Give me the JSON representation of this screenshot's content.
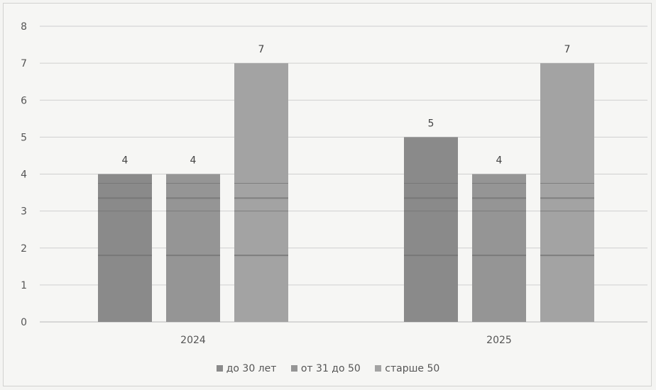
{
  "chart_data": {
    "type": "bar",
    "categories": [
      "2024",
      "2025"
    ],
    "series": [
      {
        "name": "до 30 лет",
        "values": [
          4,
          5
        ],
        "color": "#8a8a8a"
      },
      {
        "name": "от 31 до 50",
        "values": [
          4,
          4
        ],
        "color": "#959595"
      },
      {
        "name": "старше 50",
        "values": [
          7,
          7
        ],
        "color": "#a3a3a3"
      }
    ],
    "ylim": [
      0,
      8
    ],
    "yticks": [
      0,
      1,
      2,
      3,
      4,
      5,
      6,
      7,
      8
    ],
    "grid": true,
    "data_labels": true,
    "legend_position": "bottom"
  }
}
